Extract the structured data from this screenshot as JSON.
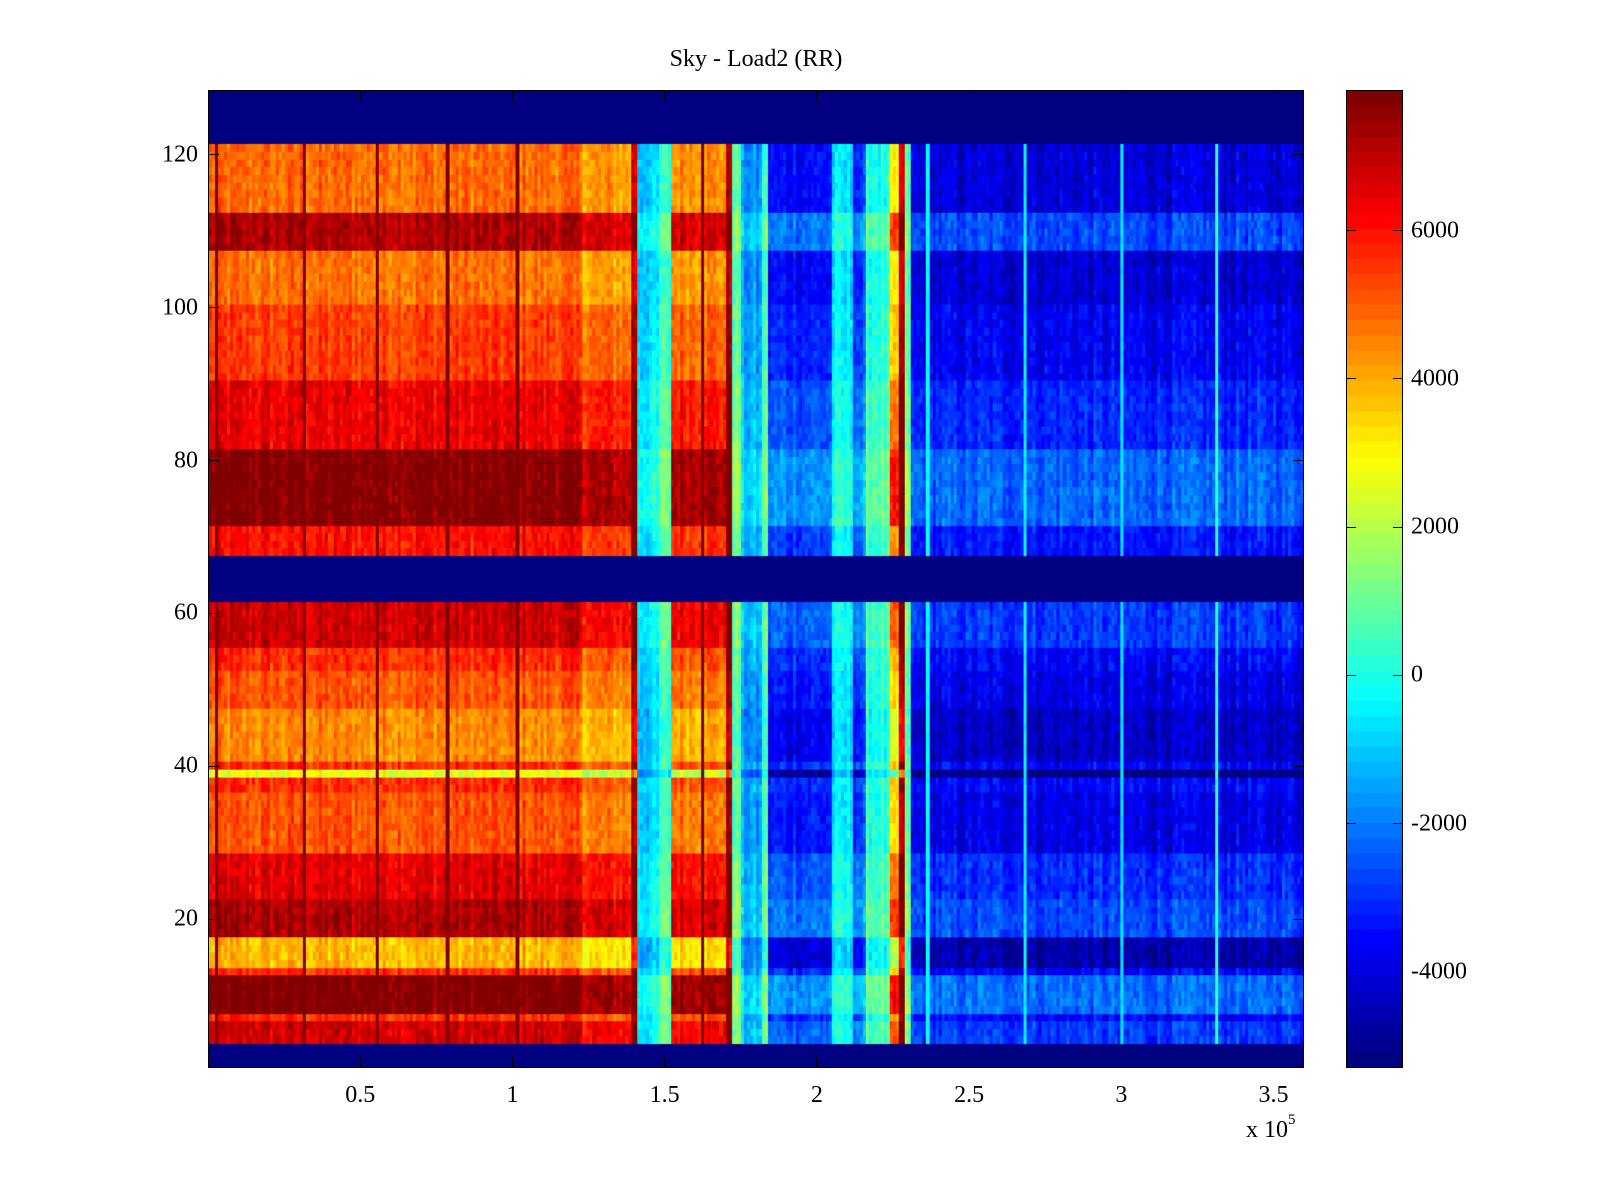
{
  "chart_data": {
    "type": "heatmap",
    "title": "Sky - Load2 (RR)",
    "xlabel": "",
    "ylabel": "",
    "x_exponent_label": "x 10",
    "x_exponent": "5",
    "xlim": [
      0,
      360000
    ],
    "ylim": [
      0.5,
      128.5
    ],
    "xticks": [
      50000,
      100000,
      150000,
      200000,
      250000,
      300000,
      350000
    ],
    "xtick_labels": [
      "0.5",
      "1",
      "1.5",
      "2",
      "2.5",
      "3",
      "3.5"
    ],
    "yticks": [
      20,
      40,
      60,
      80,
      100,
      120
    ],
    "ytick_labels": [
      "20",
      "40",
      "60",
      "80",
      "100",
      "120"
    ],
    "colormap": "jet",
    "clim": [
      -5300,
      7900
    ],
    "colorbar": {
      "ticks": [
        -4000,
        -2000,
        0,
        2000,
        4000,
        6000
      ],
      "tick_labels": [
        "-4000",
        "-2000",
        "0",
        "2000",
        "4000",
        "6000"
      ],
      "placement": "right"
    },
    "blank_rows": [
      [
        1,
        3
      ],
      [
        62,
        67
      ],
      [
        122,
        128
      ]
    ],
    "blank_value": -5300,
    "column_profile": [
      {
        "x_start": 0,
        "x_end": 123000,
        "value": 5600
      },
      {
        "x_start": 123000,
        "x_end": 139000,
        "value": 5000
      },
      {
        "x_start": 139000,
        "x_end": 141000,
        "value": 7500
      },
      {
        "x_start": 141000,
        "x_end": 148000,
        "value": -700
      },
      {
        "x_start": 148000,
        "x_end": 152000,
        "value": 500
      },
      {
        "x_start": 152000,
        "x_end": 170000,
        "value": 5200
      },
      {
        "x_start": 170000,
        "x_end": 172000,
        "value": 7800
      },
      {
        "x_start": 172000,
        "x_end": 175000,
        "value": 1000
      },
      {
        "x_start": 175000,
        "x_end": 182000,
        "value": -1500
      },
      {
        "x_start": 182000,
        "x_end": 184000,
        "value": 700
      },
      {
        "x_start": 184000,
        "x_end": 205000,
        "value": -3000
      },
      {
        "x_start": 205000,
        "x_end": 212000,
        "value": -500
      },
      {
        "x_start": 212000,
        "x_end": 216000,
        "value": -2500
      },
      {
        "x_start": 216000,
        "x_end": 224000,
        "value": 300
      },
      {
        "x_start": 224000,
        "x_end": 227000,
        "value": 3500
      },
      {
        "x_start": 227000,
        "x_end": 229000,
        "value": 7400
      },
      {
        "x_start": 229000,
        "x_end": 231000,
        "value": 800
      },
      {
        "x_start": 231000,
        "x_end": 360000,
        "value": -3600
      }
    ],
    "vertical_lines": [
      {
        "x": 2000,
        "value": 7900,
        "x_max": 123000
      },
      {
        "x": 31000,
        "value": 7900,
        "x_max": 123000
      },
      {
        "x": 55000,
        "value": 7800,
        "x_max": 123000
      },
      {
        "x": 78000,
        "value": 7800,
        "x_max": 123000
      },
      {
        "x": 101000,
        "value": 7800,
        "x_max": 123000
      },
      {
        "x": 162000,
        "value": 7900,
        "x_max": 170000
      },
      {
        "x": 236000,
        "value": -300,
        "x_max": 360000
      },
      {
        "x": 268000,
        "value": -500,
        "x_max": 360000
      },
      {
        "x": 300000,
        "value": -700,
        "x_max": 360000
      },
      {
        "x": 331000,
        "value": 200,
        "x_max": 360000
      }
    ],
    "row_offsets": [
      {
        "rows": [
          4,
          6
        ],
        "offset": 1200
      },
      {
        "rows": [
          8,
          12
        ],
        "offset": 2300
      },
      {
        "rows": [
          14,
          17
        ],
        "offset": -1800
      },
      {
        "rows": [
          18,
          22
        ],
        "offset": 1600
      },
      {
        "rows": [
          23,
          28
        ],
        "offset": 900
      },
      {
        "rows": [
          29,
          36
        ],
        "offset": -500
      },
      {
        "rows": [
          39,
          39
        ],
        "offset": -3000
      },
      {
        "rows": [
          41,
          47
        ],
        "offset": -1200
      },
      {
        "rows": [
          48,
          52
        ],
        "offset": -500
      },
      {
        "rows": [
          56,
          61
        ],
        "offset": 1200
      },
      {
        "rows": [
          68,
          71
        ],
        "offset": 400
      },
      {
        "rows": [
          72,
          81
        ],
        "offset": 2200
      },
      {
        "rows": [
          82,
          90
        ],
        "offset": 800
      },
      {
        "rows": [
          91,
          100
        ],
        "offset": -200
      },
      {
        "rows": [
          101,
          107
        ],
        "offset": -900
      },
      {
        "rows": [
          108,
          112
        ],
        "offset": 1600
      },
      {
        "rows": [
          113,
          121
        ],
        "offset": -800
      }
    ],
    "noise_amplitude": 900
  }
}
